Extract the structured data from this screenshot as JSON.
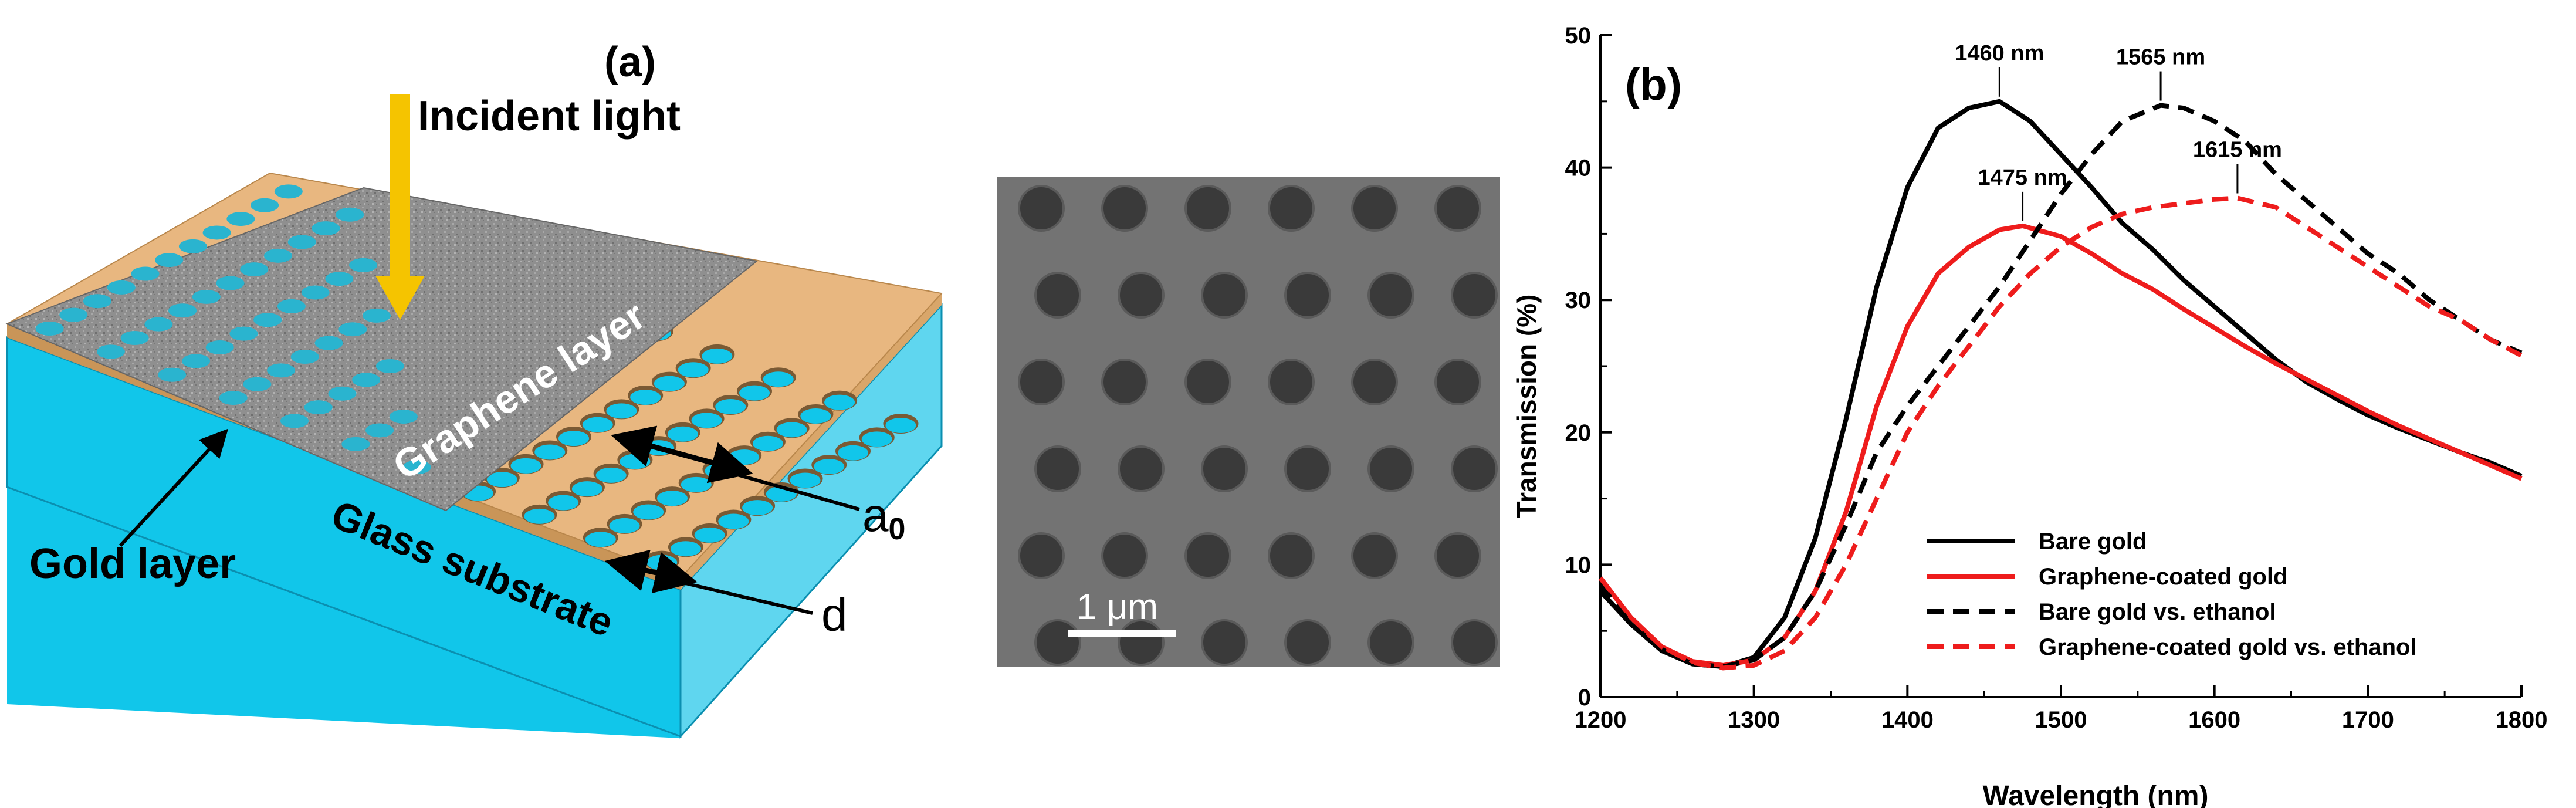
{
  "panel_a": {
    "label": "(a)",
    "incident_light": "Incident light",
    "graphene_layer": "Graphene layer",
    "gold_layer": "Gold layer",
    "glass_substrate": "Glass substrate",
    "a0_label": "a",
    "a0_subscript": "0",
    "d_label": "d",
    "colors": {
      "arrow": "#f5c400",
      "gold": "#e8b780",
      "glass": "#11c6ea",
      "graphene": "#8c8c8c",
      "hole": "#2ab4cf"
    }
  },
  "sem": {
    "scale_label": "1 μm",
    "colors": {
      "background": "#737373",
      "hole": "#3a3a3a"
    }
  },
  "chart_data": {
    "type": "line",
    "label": "(b)",
    "xlabel": "Wavelength (nm)",
    "ylabel": "Transmission (%)",
    "xlim": [
      1200,
      1800
    ],
    "ylim": [
      0,
      50
    ],
    "xticks": [
      1200,
      1300,
      1400,
      1500,
      1600,
      1700,
      1800
    ],
    "yticks": [
      0,
      10,
      20,
      30,
      40,
      50
    ],
    "grid": false,
    "legend_position": "bottom-right",
    "series": [
      {
        "name": "Bare gold",
        "color": "#000000",
        "dash": "solid",
        "x": [
          1200,
          1220,
          1240,
          1260,
          1280,
          1300,
          1320,
          1340,
          1360,
          1380,
          1400,
          1420,
          1440,
          1460,
          1480,
          1500,
          1520,
          1540,
          1560,
          1580,
          1600,
          1620,
          1640,
          1660,
          1680,
          1700,
          1720,
          1740,
          1760,
          1780,
          1800
        ],
        "y": [
          8.0,
          5.5,
          3.5,
          2.5,
          2.3,
          3.0,
          6.0,
          12.0,
          21.0,
          31.0,
          38.5,
          43.0,
          44.5,
          45.0,
          43.5,
          41.0,
          38.5,
          35.8,
          33.8,
          31.5,
          29.5,
          27.5,
          25.5,
          23.8,
          22.5,
          21.3,
          20.3,
          19.4,
          18.5,
          17.7,
          16.7
        ]
      },
      {
        "name": "Graphene-coated gold",
        "color": "#ee1c1c",
        "dash": "solid",
        "x": [
          1200,
          1220,
          1240,
          1260,
          1280,
          1300,
          1320,
          1340,
          1360,
          1380,
          1400,
          1420,
          1440,
          1460,
          1475,
          1500,
          1520,
          1540,
          1560,
          1580,
          1600,
          1620,
          1640,
          1660,
          1680,
          1700,
          1720,
          1740,
          1760,
          1780,
          1800
        ],
        "y": [
          9.0,
          6.0,
          3.8,
          2.7,
          2.4,
          2.8,
          4.5,
          8.0,
          14.0,
          22.0,
          28.0,
          32.0,
          34.0,
          35.3,
          35.6,
          34.8,
          33.5,
          32.0,
          30.8,
          29.3,
          27.9,
          26.5,
          25.2,
          24.0,
          22.8,
          21.6,
          20.5,
          19.5,
          18.5,
          17.5,
          16.5
        ]
      },
      {
        "name": "Bare gold vs. ethanol",
        "color": "#000000",
        "dash": "dashed",
        "x": [
          1200,
          1220,
          1240,
          1260,
          1280,
          1300,
          1320,
          1340,
          1360,
          1380,
          1400,
          1420,
          1440,
          1460,
          1480,
          1500,
          1520,
          1540,
          1565,
          1580,
          1600,
          1620,
          1640,
          1660,
          1680,
          1700,
          1720,
          1740,
          1760,
          1780,
          1800
        ],
        "y": [
          8.5,
          5.5,
          3.6,
          2.5,
          2.3,
          2.8,
          4.5,
          8.0,
          13.0,
          18.5,
          22.0,
          25.0,
          28.0,
          31.0,
          34.5,
          38.0,
          41.0,
          43.5,
          44.7,
          44.5,
          43.5,
          42.0,
          39.5,
          37.5,
          35.5,
          33.5,
          32.0,
          30.0,
          28.5,
          27.0,
          26.0
        ]
      },
      {
        "name": "Graphene-coated gold vs. ethanol",
        "color": "#ee1c1c",
        "dash": "dashed",
        "x": [
          1200,
          1220,
          1240,
          1260,
          1280,
          1300,
          1320,
          1340,
          1360,
          1380,
          1400,
          1420,
          1440,
          1460,
          1480,
          1500,
          1520,
          1540,
          1560,
          1580,
          1600,
          1615,
          1640,
          1660,
          1680,
          1700,
          1720,
          1740,
          1760,
          1780,
          1800
        ],
        "y": [
          9.0,
          6.0,
          3.8,
          2.6,
          2.2,
          2.4,
          3.5,
          6.0,
          10.0,
          15.0,
          20.0,
          23.5,
          26.5,
          29.5,
          32.0,
          34.0,
          35.5,
          36.5,
          37.0,
          37.3,
          37.6,
          37.7,
          37.0,
          35.5,
          34.0,
          32.5,
          31.0,
          29.5,
          28.5,
          27.0,
          25.8
        ]
      }
    ],
    "annotations": [
      {
        "text": "1460 nm",
        "x": 1460,
        "y": 45.0
      },
      {
        "text": "1565 nm",
        "x": 1565,
        "y": 44.7
      },
      {
        "text": "1475 nm",
        "x": 1475,
        "y": 35.6
      },
      {
        "text": "1615 nm",
        "x": 1615,
        "y": 37.7
      }
    ]
  }
}
